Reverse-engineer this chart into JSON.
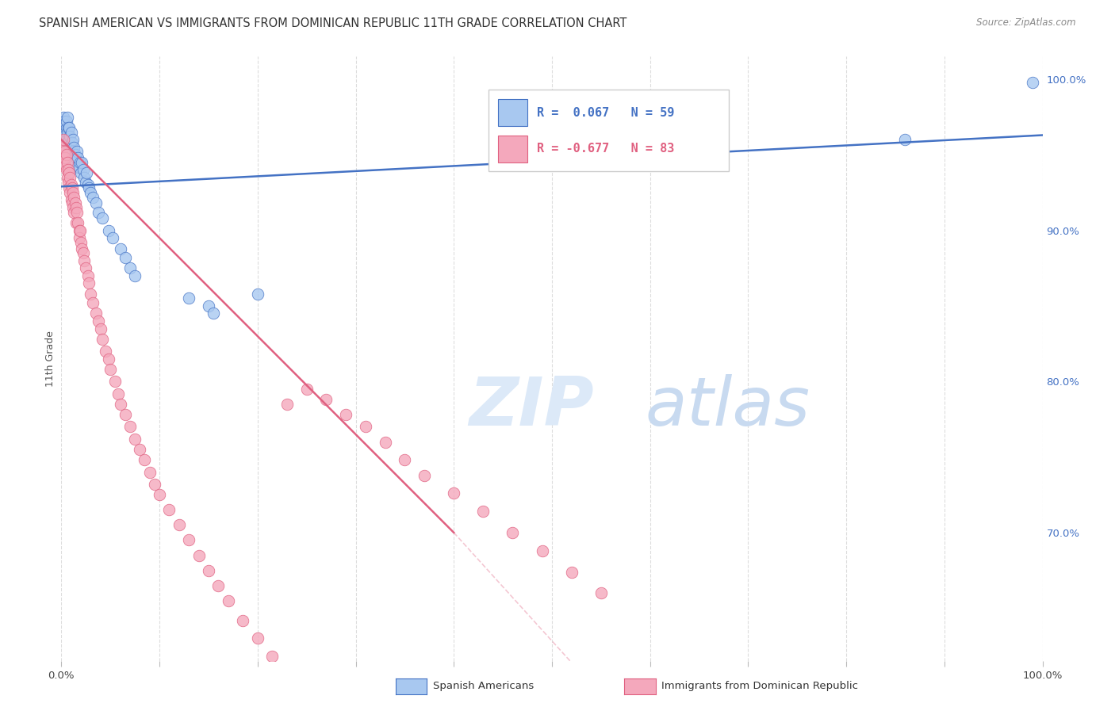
{
  "title": "SPANISH AMERICAN VS IMMIGRANTS FROM DOMINICAN REPUBLIC 11TH GRADE CORRELATION CHART",
  "source": "Source: ZipAtlas.com",
  "ylabel": "11th Grade",
  "legend_blue_r": "R =  0.067",
  "legend_blue_n": "N = 59",
  "legend_pink_r": "R = -0.677",
  "legend_pink_n": "N = 83",
  "blue_color": "#a8c8f0",
  "pink_color": "#f4a8bc",
  "blue_line_color": "#4472c4",
  "pink_line_color": "#e06080",
  "right_yticks": [
    "100.0%",
    "90.0%",
    "80.0%",
    "70.0%"
  ],
  "right_ytick_vals": [
    1.0,
    0.9,
    0.8,
    0.7
  ],
  "right_tick_color": "#4472c4",
  "grid_color": "#dddddd",
  "background_color": "#ffffff",
  "title_fontsize": 10.5,
  "xlim": [
    0.0,
    1.0
  ],
  "ylim": [
    0.615,
    1.015
  ],
  "blue_scatter_x": [
    0.001,
    0.002,
    0.002,
    0.003,
    0.003,
    0.004,
    0.004,
    0.005,
    0.005,
    0.005,
    0.006,
    0.006,
    0.006,
    0.007,
    0.007,
    0.008,
    0.008,
    0.009,
    0.009,
    0.01,
    0.01,
    0.01,
    0.011,
    0.011,
    0.012,
    0.012,
    0.013,
    0.014,
    0.015,
    0.016,
    0.016,
    0.017,
    0.018,
    0.019,
    0.02,
    0.021,
    0.022,
    0.023,
    0.025,
    0.026,
    0.027,
    0.028,
    0.03,
    0.032,
    0.035,
    0.038,
    0.042,
    0.048,
    0.052,
    0.06,
    0.065,
    0.07,
    0.075,
    0.13,
    0.15,
    0.155,
    0.2,
    0.86,
    0.99
  ],
  "blue_scatter_y": [
    0.97,
    0.975,
    0.968,
    0.972,
    0.965,
    0.97,
    0.963,
    0.968,
    0.972,
    0.96,
    0.965,
    0.958,
    0.975,
    0.968,
    0.955,
    0.96,
    0.968,
    0.955,
    0.962,
    0.958,
    0.965,
    0.952,
    0.958,
    0.945,
    0.96,
    0.952,
    0.955,
    0.95,
    0.948,
    0.952,
    0.942,
    0.948,
    0.942,
    0.945,
    0.938,
    0.945,
    0.94,
    0.935,
    0.932,
    0.938,
    0.93,
    0.928,
    0.925,
    0.922,
    0.918,
    0.912,
    0.908,
    0.9,
    0.895,
    0.888,
    0.882,
    0.875,
    0.87,
    0.855,
    0.85,
    0.845,
    0.858,
    0.96,
    0.998
  ],
  "pink_scatter_x": [
    0.001,
    0.002,
    0.002,
    0.003,
    0.003,
    0.004,
    0.005,
    0.005,
    0.006,
    0.006,
    0.007,
    0.007,
    0.008,
    0.008,
    0.009,
    0.009,
    0.01,
    0.01,
    0.011,
    0.011,
    0.012,
    0.012,
    0.013,
    0.013,
    0.014,
    0.015,
    0.015,
    0.016,
    0.017,
    0.018,
    0.018,
    0.019,
    0.02,
    0.021,
    0.022,
    0.023,
    0.025,
    0.027,
    0.028,
    0.03,
    0.032,
    0.035,
    0.038,
    0.04,
    0.042,
    0.045,
    0.048,
    0.05,
    0.055,
    0.058,
    0.06,
    0.065,
    0.07,
    0.075,
    0.08,
    0.085,
    0.09,
    0.095,
    0.1,
    0.11,
    0.12,
    0.13,
    0.14,
    0.15,
    0.16,
    0.17,
    0.185,
    0.2,
    0.215,
    0.23,
    0.25,
    0.27,
    0.29,
    0.31,
    0.33,
    0.35,
    0.37,
    0.4,
    0.43,
    0.46,
    0.49,
    0.52,
    0.55
  ],
  "pink_scatter_y": [
    0.955,
    0.96,
    0.948,
    0.952,
    0.944,
    0.948,
    0.95,
    0.94,
    0.945,
    0.935,
    0.94,
    0.932,
    0.938,
    0.928,
    0.935,
    0.925,
    0.93,
    0.92,
    0.928,
    0.918,
    0.925,
    0.915,
    0.922,
    0.912,
    0.918,
    0.915,
    0.905,
    0.912,
    0.905,
    0.9,
    0.895,
    0.9,
    0.892,
    0.888,
    0.885,
    0.88,
    0.875,
    0.87,
    0.865,
    0.858,
    0.852,
    0.845,
    0.84,
    0.835,
    0.828,
    0.82,
    0.815,
    0.808,
    0.8,
    0.792,
    0.785,
    0.778,
    0.77,
    0.762,
    0.755,
    0.748,
    0.74,
    0.732,
    0.725,
    0.715,
    0.705,
    0.695,
    0.685,
    0.675,
    0.665,
    0.655,
    0.642,
    0.63,
    0.618,
    0.785,
    0.795,
    0.788,
    0.778,
    0.77,
    0.76,
    0.748,
    0.738,
    0.726,
    0.714,
    0.7,
    0.688,
    0.674,
    0.66
  ],
  "blue_regline_x": [
    0.0,
    1.0
  ],
  "blue_regline_y": [
    0.929,
    0.963
  ],
  "pink_regline_x": [
    0.0,
    0.4
  ],
  "pink_regline_y": [
    0.96,
    0.7
  ],
  "pink_dashline_x": [
    0.4,
    1.0
  ],
  "pink_dashline_y": [
    0.7,
    0.27
  ]
}
